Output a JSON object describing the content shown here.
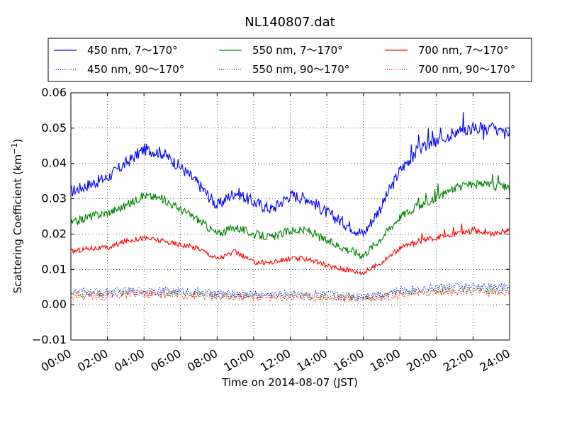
{
  "chart_data": {
    "type": "line",
    "title": "NL140807.dat",
    "xlabel": "Time on 2014-08-07 (JST)",
    "ylabel": "Scattering Coefficient (km",
    "ylabel_sup": "−1",
    "ylabel_close": ")",
    "xlim": [
      "00:00",
      "24:00"
    ],
    "ylim": [
      -0.01,
      0.06
    ],
    "x_ticks": [
      "00:00",
      "02:00",
      "04:00",
      "06:00",
      "08:00",
      "10:00",
      "12:00",
      "14:00",
      "16:00",
      "18:00",
      "20:00",
      "22:00",
      "24:00"
    ],
    "y_ticks": [
      "0.06",
      "0.05",
      "0.04",
      "0.03",
      "0.02",
      "0.01",
      "0.00",
      "−0.01"
    ],
    "y_tick_values": [
      0.06,
      0.05,
      0.04,
      0.03,
      0.02,
      0.01,
      0.0,
      -0.01
    ],
    "grid": true,
    "legend": "top",
    "x_hours": [
      0,
      1,
      2,
      3,
      4,
      5,
      6,
      7,
      8,
      9,
      10,
      11,
      12,
      13,
      14,
      15,
      16,
      17,
      18,
      19,
      20,
      21,
      22,
      23,
      24
    ],
    "series": [
      {
        "name": "450 nm, 7～170°",
        "color": "#0000ff",
        "style": "solid",
        "values": [
          0.032,
          0.034,
          0.036,
          0.04,
          0.044,
          0.043,
          0.039,
          0.034,
          0.028,
          0.032,
          0.029,
          0.027,
          0.031,
          0.03,
          0.026,
          0.023,
          0.02,
          0.028,
          0.038,
          0.044,
          0.046,
          0.049,
          0.05,
          0.05,
          0.048
        ]
      },
      {
        "name": "450 nm, 90～170°",
        "color": "#0000ff",
        "style": "dotted",
        "values": [
          0.0035,
          0.0035,
          0.0035,
          0.0038,
          0.004,
          0.004,
          0.0038,
          0.0035,
          0.003,
          0.003,
          0.003,
          0.0028,
          0.003,
          0.003,
          0.0028,
          0.0026,
          0.0025,
          0.003,
          0.004,
          0.0045,
          0.005,
          0.005,
          0.005,
          0.005,
          0.0048
        ]
      },
      {
        "name": "550 nm, 7～170°",
        "color": "#008000",
        "style": "solid",
        "values": [
          0.023,
          0.025,
          0.026,
          0.028,
          0.031,
          0.03,
          0.027,
          0.024,
          0.02,
          0.022,
          0.02,
          0.019,
          0.021,
          0.021,
          0.018,
          0.016,
          0.014,
          0.019,
          0.025,
          0.028,
          0.03,
          0.033,
          0.034,
          0.034,
          0.033
        ]
      },
      {
        "name": "550 nm, 90～170°",
        "color": "#008000",
        "style": "dotted",
        "values": [
          0.003,
          0.003,
          0.003,
          0.0032,
          0.0034,
          0.0034,
          0.0032,
          0.003,
          0.0026,
          0.0026,
          0.0026,
          0.0024,
          0.0026,
          0.0026,
          0.0024,
          0.0022,
          0.0021,
          0.0025,
          0.0034,
          0.0038,
          0.0042,
          0.0042,
          0.0042,
          0.0042,
          0.004
        ]
      },
      {
        "name": "700 nm, 7～170°",
        "color": "#ff0000",
        "style": "solid",
        "values": [
          0.015,
          0.016,
          0.016,
          0.018,
          0.019,
          0.018,
          0.017,
          0.016,
          0.013,
          0.015,
          0.012,
          0.012,
          0.013,
          0.013,
          0.011,
          0.01,
          0.009,
          0.012,
          0.016,
          0.018,
          0.019,
          0.02,
          0.021,
          0.02,
          0.021
        ]
      },
      {
        "name": "700 nm, 90～170°",
        "color": "#ff0000",
        "style": "dotted",
        "values": [
          0.0025,
          0.0025,
          0.0025,
          0.0027,
          0.0029,
          0.0029,
          0.0027,
          0.0025,
          0.0022,
          0.0022,
          0.0022,
          0.002,
          0.0022,
          0.0022,
          0.002,
          0.0018,
          0.0017,
          0.0021,
          0.0029,
          0.0033,
          0.0036,
          0.0036,
          0.0036,
          0.0036,
          0.0034
        ]
      }
    ]
  }
}
